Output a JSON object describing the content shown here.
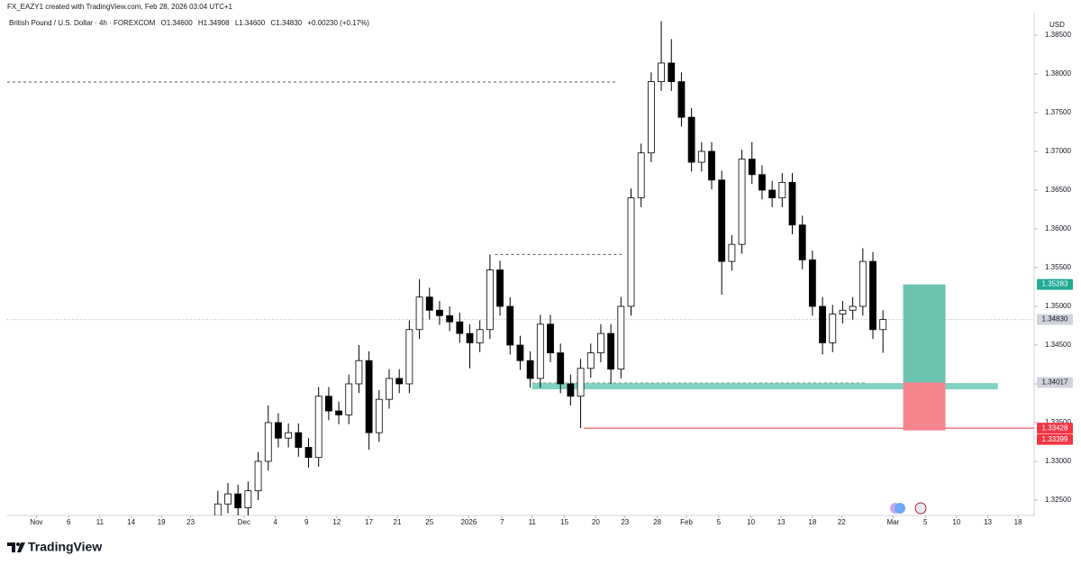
{
  "header": {
    "author_line": "FX_EAZY1 created with TradingView.com, Feb 28, 2026 03:04 UTC+1"
  },
  "footer": {
    "brand": "TradingView"
  },
  "chart_data": {
    "type": "candlestick",
    "title": "British Pound / U.S. Dollar · 4h · FOREXCOM",
    "legend_values": [
      "O1.34600",
      "H1.34908",
      "L1.34600",
      "C1.34830",
      "+0.00230 (+0.17%)"
    ],
    "currency": "USD",
    "up_color": "#ffffff",
    "down_color": "#000000",
    "wick_color": "#000000",
    "xlim": [
      -2.9,
      99
    ],
    "xticks": [
      {
        "value": 0,
        "label": "Nov"
      },
      {
        "value": 3.2,
        "label": "6"
      },
      {
        "value": 6.3,
        "label": "11"
      },
      {
        "value": 9.4,
        "label": "14"
      },
      {
        "value": 12.4,
        "label": "19"
      },
      {
        "value": 15.3,
        "label": "23"
      },
      {
        "value": 20.6,
        "label": "Dec"
      },
      {
        "value": 23.7,
        "label": "4"
      },
      {
        "value": 26.8,
        "label": "9"
      },
      {
        "value": 29.8,
        "label": "12"
      },
      {
        "value": 33,
        "label": "17"
      },
      {
        "value": 35.8,
        "label": "21"
      },
      {
        "value": 39,
        "label": "25"
      },
      {
        "value": 42.9,
        "label": "2026"
      },
      {
        "value": 46.2,
        "label": "7"
      },
      {
        "value": 49.2,
        "label": "11"
      },
      {
        "value": 52.4,
        "label": "15"
      },
      {
        "value": 55.5,
        "label": "20"
      },
      {
        "value": 58.4,
        "label": "23"
      },
      {
        "value": 61.6,
        "label": "28"
      },
      {
        "value": 64.5,
        "label": "Feb"
      },
      {
        "value": 67.7,
        "label": "5"
      },
      {
        "value": 70.9,
        "label": "10"
      },
      {
        "value": 73.9,
        "label": "13"
      },
      {
        "value": 77,
        "label": "18"
      },
      {
        "value": 79.9,
        "label": "22"
      },
      {
        "value": 85,
        "label": "Mar"
      },
      {
        "value": 88.2,
        "label": "5"
      },
      {
        "value": 91.3,
        "label": "10"
      },
      {
        "value": 94.4,
        "label": "13"
      },
      {
        "value": 97.4,
        "label": "18"
      }
    ],
    "ylim": [
      1.32302,
      1.38744
    ],
    "yticks": [
      {
        "value": 1.325,
        "label": "1.32500"
      },
      {
        "value": 1.33,
        "label": "1.33000"
      },
      {
        "value": 1.335,
        "label": "1.33500"
      },
      {
        "value": 1.34,
        "label": "1.34000"
      },
      {
        "value": 1.345,
        "label": "1.34500"
      },
      {
        "value": 1.35,
        "label": "1.35000"
      },
      {
        "value": 1.355,
        "label": "1.35500"
      },
      {
        "value": 1.36,
        "label": "1.36000"
      },
      {
        "value": 1.365,
        "label": "1.36500"
      },
      {
        "value": 1.37,
        "label": "1.37000"
      },
      {
        "value": 1.375,
        "label": "1.37500"
      },
      {
        "value": 1.38,
        "label": "1.38000"
      },
      {
        "value": 1.385,
        "label": "1.38500"
      }
    ],
    "x": [
      18,
      19,
      20,
      21,
      22,
      23,
      24,
      25,
      26,
      27,
      28,
      29,
      30,
      31,
      32,
      33,
      34,
      35,
      36,
      37,
      38,
      39,
      40,
      41,
      42,
      43,
      44,
      45,
      46,
      47,
      48,
      49,
      50,
      51,
      52,
      53,
      54,
      55,
      56,
      57,
      58,
      59,
      60,
      61,
      62,
      63,
      64,
      65,
      66,
      67,
      68,
      69,
      70,
      71,
      72,
      73,
      74,
      75,
      76,
      77,
      78,
      79,
      80,
      81,
      82,
      83,
      84
    ],
    "open": [
      1.323,
      1.3245,
      1.3258,
      1.324,
      1.3262,
      1.33,
      1.335,
      1.333,
      1.3337,
      1.3318,
      1.3305,
      1.3384,
      1.3365,
      1.336,
      1.34,
      1.343,
      1.3337,
      1.338,
      1.3407,
      1.34,
      1.347,
      1.3512,
      1.3495,
      1.3488,
      1.348,
      1.3465,
      1.3453,
      1.347,
      1.3547,
      1.35,
      1.345,
      1.343,
      1.3407,
      1.3477,
      1.344,
      1.34,
      1.3384,
      1.342,
      1.344,
      1.3465,
      1.3419,
      1.35,
      1.364,
      1.3698,
      1.379,
      1.3814,
      1.379,
      1.3744,
      1.3686,
      1.37,
      1.3663,
      1.3558,
      1.358,
      1.369,
      1.367,
      1.365,
      1.364,
      1.366,
      1.3605,
      1.356,
      1.35,
      1.3453,
      1.349,
      1.3495,
      1.35,
      1.3558,
      1.347
    ],
    "high": [
      1.3262,
      1.3272,
      1.327,
      1.3274,
      1.3312,
      1.3372,
      1.3362,
      1.3349,
      1.3349,
      1.333,
      1.3396,
      1.3396,
      1.3377,
      1.3412,
      1.345,
      1.3442,
      1.3392,
      1.3419,
      1.3419,
      1.3482,
      1.3535,
      1.3524,
      1.3507,
      1.35,
      1.3492,
      1.3477,
      1.3482,
      1.3567,
      1.3559,
      1.3512,
      1.3462,
      1.3442,
      1.3489,
      1.3489,
      1.3452,
      1.3412,
      1.3432,
      1.3452,
      1.3477,
      1.3477,
      1.3512,
      1.3652,
      1.371,
      1.3802,
      1.3868,
      1.3845,
      1.3802,
      1.3756,
      1.3712,
      1.3712,
      1.3675,
      1.3592,
      1.3702,
      1.3712,
      1.3682,
      1.3662,
      1.3672,
      1.3672,
      1.3617,
      1.3572,
      1.3512,
      1.3502,
      1.3507,
      1.3512,
      1.3575,
      1.357,
      1.3495
    ],
    "low": [
      1.3218,
      1.3233,
      1.3228,
      1.3228,
      1.325,
      1.3288,
      1.3318,
      1.3318,
      1.3306,
      1.3292,
      1.3293,
      1.3353,
      1.3348,
      1.3348,
      1.3388,
      1.3315,
      1.3325,
      1.3368,
      1.3388,
      1.3388,
      1.3458,
      1.3483,
      1.3476,
      1.3468,
      1.3453,
      1.342,
      1.3441,
      1.3458,
      1.3488,
      1.3438,
      1.3418,
      1.3395,
      1.3395,
      1.3428,
      1.3388,
      1.3372,
      1.3343,
      1.3408,
      1.3428,
      1.34,
      1.3407,
      1.3488,
      1.3628,
      1.3686,
      1.3778,
      1.3778,
      1.3732,
      1.3674,
      1.3674,
      1.3651,
      1.3515,
      1.3546,
      1.3568,
      1.3658,
      1.3638,
      1.3628,
      1.3628,
      1.3593,
      1.3548,
      1.3488,
      1.3438,
      1.3441,
      1.3478,
      1.3483,
      1.3488,
      1.3458,
      1.344
    ],
    "close": [
      1.3245,
      1.3258,
      1.324,
      1.3262,
      1.33,
      1.335,
      1.333,
      1.3337,
      1.3318,
      1.3305,
      1.3384,
      1.3365,
      1.336,
      1.34,
      1.343,
      1.3337,
      1.338,
      1.3407,
      1.34,
      1.347,
      1.3512,
      1.3495,
      1.3488,
      1.348,
      1.3465,
      1.3453,
      1.347,
      1.3547,
      1.35,
      1.345,
      1.343,
      1.3407,
      1.3477,
      1.344,
      1.34,
      1.3384,
      1.342,
      1.344,
      1.3465,
      1.3419,
      1.35,
      1.364,
      1.3698,
      1.379,
      1.3814,
      1.379,
      1.3744,
      1.3686,
      1.37,
      1.3663,
      1.3558,
      1.358,
      1.369,
      1.367,
      1.365,
      1.364,
      1.366,
      1.3605,
      1.356,
      1.35,
      1.3453,
      1.349,
      1.3495,
      1.35,
      1.3558,
      1.347,
      1.3483
    ],
    "last_price": {
      "value": 1.3483,
      "label": "1.34830",
      "color": "#b2b5be"
    },
    "levels": [
      {
        "value": 1.37895,
        "x_range": [
          -2.9,
          57.5
        ],
        "style": "dashed",
        "color": "#555555"
      },
      {
        "value": 1.3567,
        "x_range": [
          45.5,
          58.1
        ],
        "style": "dashed",
        "color": "#555555"
      },
      {
        "value": 1.3401,
        "x_range": [
          49.2,
          82.2
        ],
        "style": "dashed",
        "color": "#555555"
      }
    ],
    "zone": {
      "range": [
        1.3393,
        1.3401
      ],
      "x_range": [
        49.2,
        95.4
      ],
      "color": "#7fd1c1"
    },
    "stop_line": {
      "value": 1.33428,
      "label": "1.33428",
      "x_range": [
        54.3,
        99
      ],
      "color": "#f23645"
    },
    "position": {
      "x_range": [
        86,
        90.2
      ],
      "profit_color": "#6cc4b0",
      "loss_color": "#f7858f",
      "target": {
        "value": 1.35283,
        "label": "1.35283"
      },
      "entry": {
        "value": 1.34017,
        "label": "1.34017"
      },
      "stop": {
        "value": 1.33399,
        "label": "1.33399"
      }
    }
  }
}
